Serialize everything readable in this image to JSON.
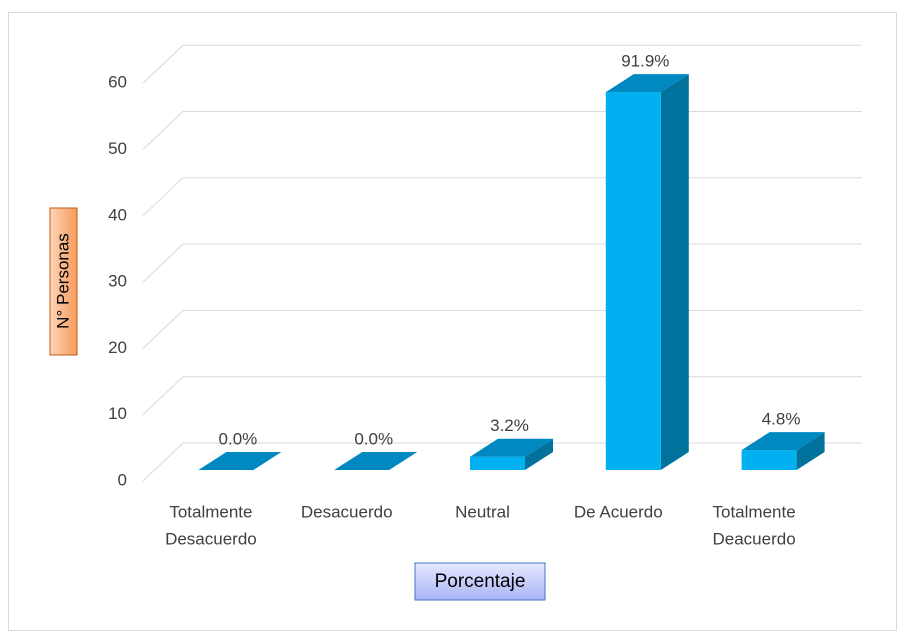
{
  "chart_data": {
    "type": "bar3d",
    "categories": [
      [
        "Totalmente",
        "Desacuerdo"
      ],
      [
        "Desacuerdo"
      ],
      [
        "Neutral"
      ],
      [
        "De Acuerdo"
      ],
      [
        "Totalmente",
        "Deacuerdo"
      ]
    ],
    "values": [
      0,
      0,
      2,
      57,
      3
    ],
    "data_labels": [
      "0.0%",
      "0.0%",
      "3.2%",
      "91.9%",
      "4.8%"
    ],
    "ylim": [
      0,
      60
    ],
    "yticks": [
      0,
      10,
      20,
      30,
      40,
      50,
      60
    ],
    "grid": true,
    "ylabel": "N° Personas",
    "xlabel": "Porcentaje",
    "color": "#00b0f0"
  }
}
